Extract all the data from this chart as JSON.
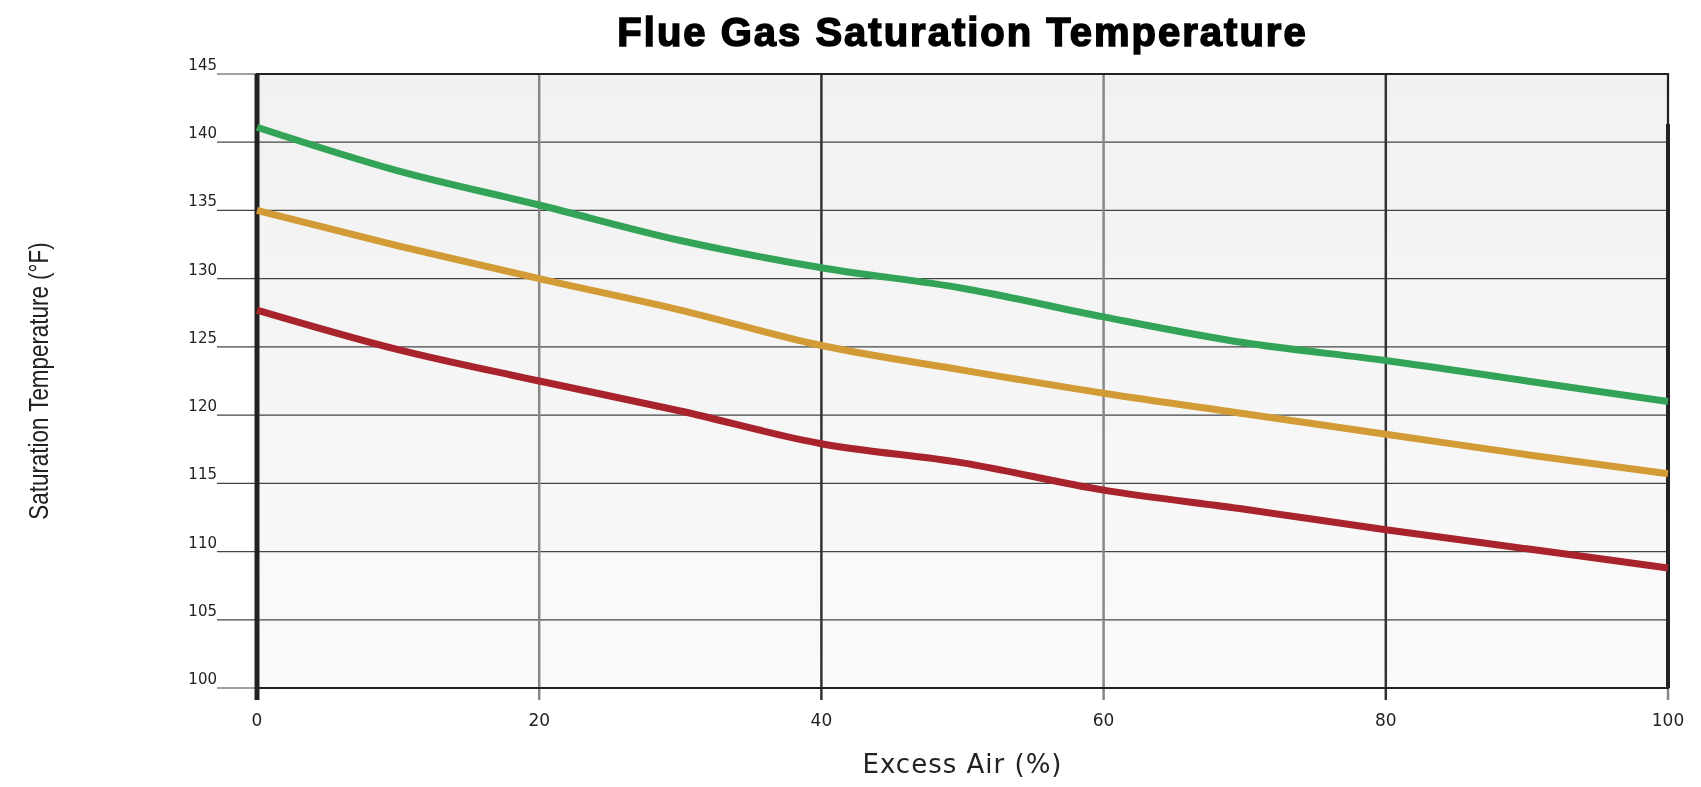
{
  "chart_data": {
    "type": "line",
    "title": "Flue Gas Saturation Temperature",
    "xlabel": "Excess Air (%)",
    "ylabel": "Saturation Temperature (°F)",
    "x": [
      0,
      10,
      20,
      30,
      40,
      50,
      60,
      70,
      80,
      90,
      100
    ],
    "series": [
      {
        "color": "#33a457",
        "values": [
          141.1,
          137.9,
          135.4,
          132.8,
          130.8,
          129.3,
          127.2,
          125.3,
          124.0,
          122.5,
          121.0
        ]
      },
      {
        "color": "#d39b35",
        "values": [
          135.0,
          132.4,
          130.0,
          127.7,
          125.1,
          123.3,
          121.6,
          120.1,
          118.6,
          117.1,
          115.7
        ]
      },
      {
        "color": "#a8232b",
        "values": [
          127.7,
          124.8,
          122.5,
          120.3,
          117.9,
          116.5,
          114.5,
          113.1,
          111.6,
          110.2,
          108.8
        ]
      }
    ],
    "xlim": [
      0,
      100
    ],
    "xticks": [
      0,
      20,
      40,
      60,
      80,
      100
    ],
    "ylim": [
      100,
      145
    ],
    "yticks": [
      100,
      105,
      110,
      115,
      120,
      125,
      130,
      135,
      140,
      145
    ],
    "grid": true,
    "marker": "none",
    "line_style": "solid"
  }
}
